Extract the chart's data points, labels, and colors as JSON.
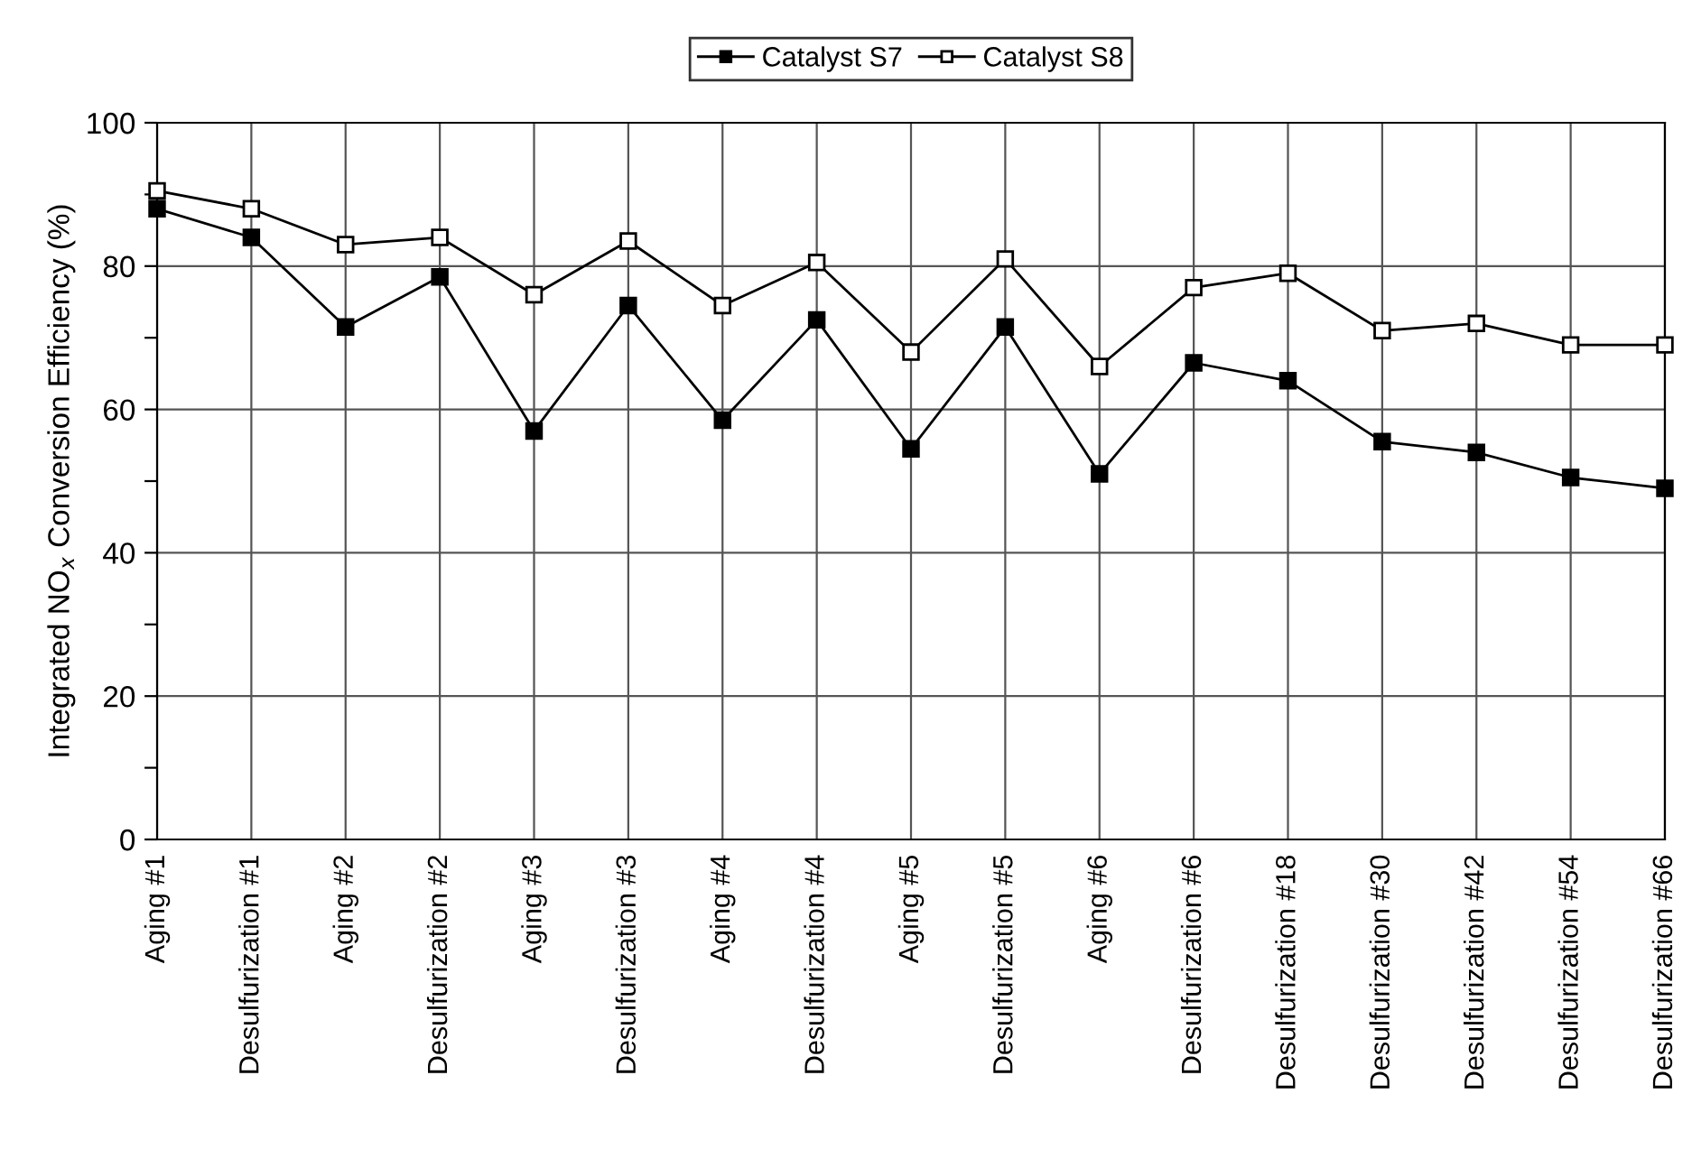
{
  "chart_data": {
    "type": "line",
    "ylabel": "Integrated NO$_{x}$ Conversion Efficiency (%)",
    "categories": [
      "Aging #1",
      "Desulfurization #1",
      "Aging #2",
      "Desulfurization #2",
      "Aging #3",
      "Desulfurization #3",
      "Aging #4",
      "Desulfurization #4",
      "Aging #5",
      "Desulfurization #5",
      "Aging #6",
      "Desulfurization #6",
      "Desulfurization #18",
      "Desulfurization #30",
      "Desulfurization #42",
      "Desulfurization #54",
      "Desulfurization #66"
    ],
    "series": [
      {
        "name": "Catalyst S7",
        "color": "#000000",
        "marker": "square",
        "values": [
          88,
          84,
          71.5,
          78.5,
          57,
          74.5,
          58.5,
          72.5,
          54.5,
          71.5,
          51,
          66.5,
          64,
          55.5,
          54,
          50.5,
          49
        ]
      },
      {
        "name": "Catalyst S8",
        "color": "#ffffff",
        "marker": "square",
        "values": [
          90.5,
          88,
          83,
          84,
          76,
          83.5,
          74.5,
          80.5,
          68,
          81,
          66,
          77,
          79,
          71,
          72,
          69,
          69
        ]
      }
    ],
    "ylim": [
      0,
      100
    ],
    "yticks": [
      0,
      {
        "value": 10,
        "label": null
      },
      20,
      {
        "value": 30,
        "label": null
      },
      40,
      {
        "value": 50,
        "label": null
      },
      60,
      {
        "value": 70,
        "label": null
      },
      80,
      {
        "value": 90,
        "label": null
      },
      100
    ],
    "grid": true,
    "legend": "top",
    "line_style": "solid"
  }
}
